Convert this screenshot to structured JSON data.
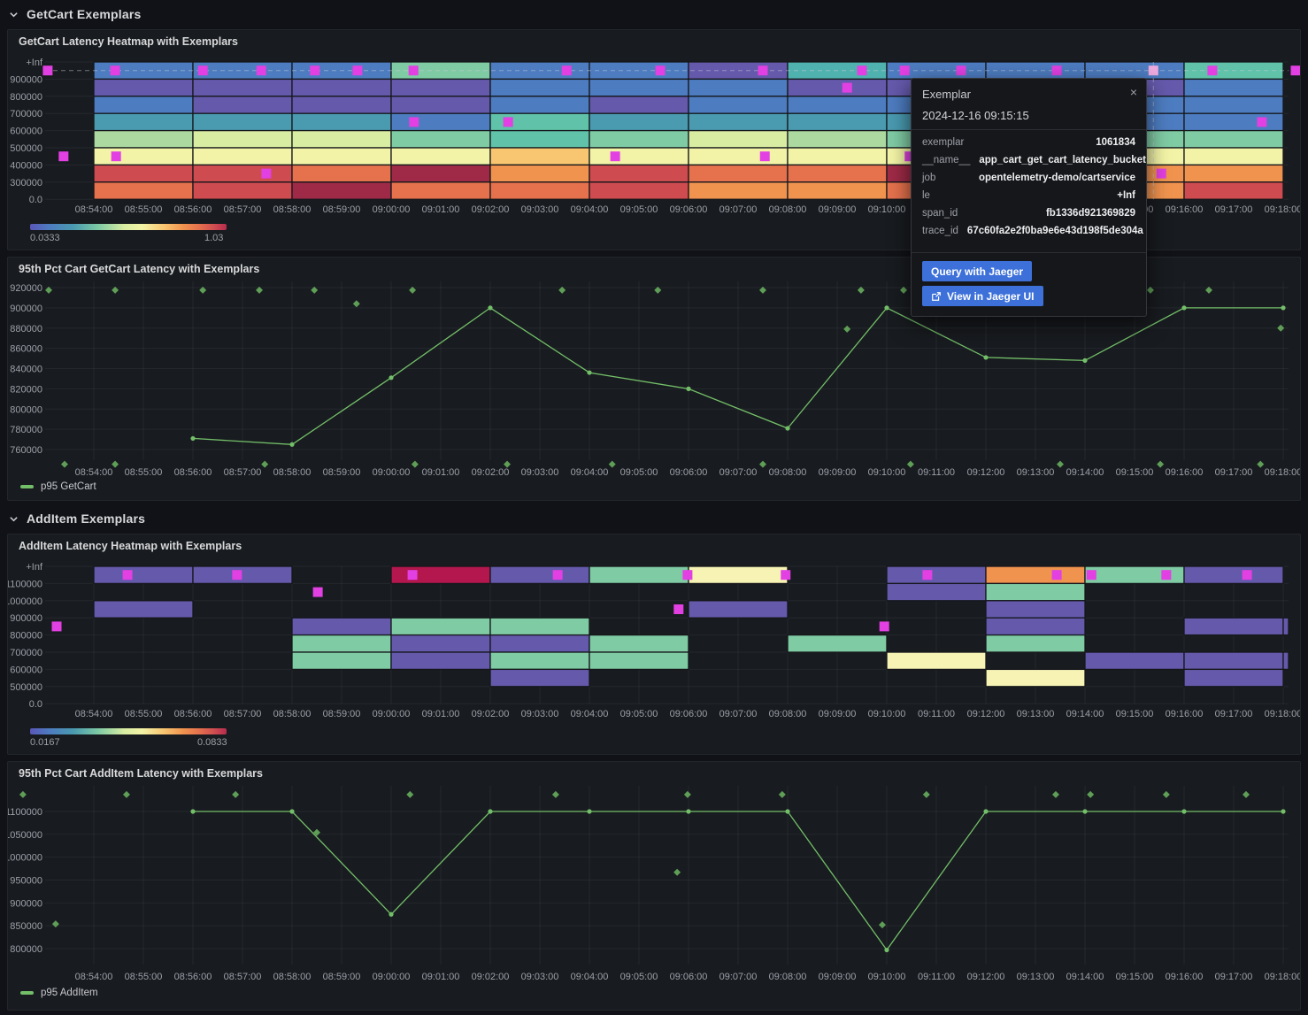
{
  "rows": [
    {
      "title": "GetCart Exemplars",
      "collapsed": false
    },
    {
      "title": "AddItem Exemplars",
      "collapsed": false
    }
  ],
  "panels": {
    "heatmap_getcart": {
      "title": "GetCart Latency Heatmap with Exemplars",
      "scale_min": "0.0333",
      "scale_max": "1.03"
    },
    "line_getcart": {
      "title": "95th Pct Cart GetCart Latency with Exemplars",
      "legend": "p95 GetCart"
    },
    "heatmap_additem": {
      "title": "AddItem Latency Heatmap with Exemplars",
      "scale_min": "0.0167",
      "scale_max": "0.0833"
    },
    "line_additem": {
      "title": "95th Pct Cart AddItem Latency with Exemplars",
      "legend": "p95 AddItem"
    }
  },
  "tooltip": {
    "title": "Exemplar",
    "timestamp": "2024-12-16 09:15:15",
    "close": "×",
    "fields": [
      {
        "key": "exemplar",
        "value": "1061834"
      },
      {
        "key": "__name__",
        "value": "app_cart_get_cart_latency_bucket"
      },
      {
        "key": "job",
        "value": "opentelemetry-demo/cartservice"
      },
      {
        "key": "le",
        "value": "+Inf"
      },
      {
        "key": "span_id",
        "value": "fb1336d921369829"
      },
      {
        "key": "trace_id",
        "value": "67c60fa2e2f0ba9e6e43d198f5de304a"
      }
    ],
    "buttons": [
      {
        "label": "Query with Jaeger"
      },
      {
        "label": "View in Jaeger UI",
        "icon": "external-link-icon"
      }
    ]
  },
  "colors": {
    "accent_blue": "#3d71d9",
    "series_green": "#73bf69",
    "diamond_green": "#5f9e57",
    "exemplar_magenta": "#e240e2",
    "exemplar_magenta_light": "#eeaade",
    "grid": "rgba(204,204,220,0.07)",
    "axis_text": "#9da0a8",
    "panel_bg": "#181b1f",
    "page_bg": "#111217"
  },
  "palette": {
    "B": "#4d7cc0",
    "P": "#6459ab",
    "TB": "#4a9ab0",
    "T": "#50b2ae",
    "TG": "#5fc2a9",
    "G": "#7fcba4",
    "LG": "#abd9a0",
    "YG": "#d9eda2",
    "PY": "#f2f3a6",
    "PY2": "#f6f3b4",
    "LO": "#f8c671",
    "O": "#f0934f",
    "OR": "#e5714d",
    "R": "#ce4b50",
    "CR": "#b62c4d",
    "CR2": "#b3174e",
    "DR": "#9e2a47"
  },
  "time_axis": [
    "08:54:00",
    "08:55:00",
    "08:56:00",
    "08:57:00",
    "08:58:00",
    "08:59:00",
    "09:00:00",
    "09:01:00",
    "09:02:00",
    "09:03:00",
    "09:04:00",
    "09:05:00",
    "09:06:00",
    "09:07:00",
    "09:08:00",
    "09:09:00",
    "09:10:00",
    "09:11:00",
    "09:12:00",
    "09:13:00",
    "09:14:00",
    "09:15:00",
    "09:16:00",
    "09:17:00",
    "09:18:00"
  ],
  "chart_data": [
    {
      "type": "heatmap",
      "title": "GetCart Latency Heatmap with Exemplars",
      "y_ticks": [
        "+Inf",
        "900000",
        "800000",
        "700000",
        "600000",
        "500000",
        "400000",
        "300000",
        "0.0"
      ],
      "column_minutes": 2,
      "columns": [
        {
          "t": "08:54",
          "cells": [
            "B",
            "P",
            "B",
            "TB",
            "LG",
            "PY",
            "R",
            "OR"
          ]
        },
        {
          "t": "08:56",
          "cells": [
            "B",
            "P",
            "P",
            "TB",
            "YG",
            "PY",
            "R",
            "R"
          ]
        },
        {
          "t": "08:58",
          "cells": [
            "B",
            "P",
            "P",
            "TB",
            "YG",
            "PY",
            "OR",
            "DR"
          ]
        },
        {
          "t": "09:00",
          "cells": [
            "G",
            "P",
            "P",
            "B",
            "G",
            "PY",
            "DR",
            "OR"
          ]
        },
        {
          "t": "09:02",
          "cells": [
            "B",
            "B",
            "B",
            "TG",
            "TG",
            "LO",
            "O",
            "OR"
          ]
        },
        {
          "t": "09:04",
          "cells": [
            "B",
            "B",
            "P",
            "TB",
            "G",
            "PY",
            "R",
            "R"
          ]
        },
        {
          "t": "09:06",
          "cells": [
            "P",
            "B",
            "B",
            "TB",
            "YG",
            "PY",
            "OR",
            "O"
          ]
        },
        {
          "t": "09:08",
          "cells": [
            "T",
            "P",
            "B",
            "TB",
            "LG",
            "PY",
            "OR",
            "O"
          ]
        },
        {
          "t": "09:10",
          "cells": [
            "B",
            "P",
            "B",
            "TB",
            "G",
            "PY",
            "DR",
            "OR"
          ]
        },
        {
          "t": "09:12",
          "cells": [
            "B",
            "P",
            "B",
            "TB",
            "G",
            "PY",
            "R",
            "OR"
          ]
        },
        {
          "t": "09:14",
          "cells": [
            "B",
            "P",
            "B",
            "B",
            "G",
            "PY",
            "O",
            "O"
          ]
        },
        {
          "t": "09:16",
          "cells": [
            "TG",
            "B",
            "B",
            "B",
            "G",
            "PY",
            "O",
            "R"
          ]
        }
      ],
      "exemplars": [
        {
          "m": -0.93,
          "row": 1
        },
        {
          "m": 0.43,
          "row": 1
        },
        {
          "m": 2.2,
          "row": 1
        },
        {
          "m": 3.38,
          "row": 1
        },
        {
          "m": 4.46,
          "row": 1
        },
        {
          "m": 5.32,
          "row": 1
        },
        {
          "m": 6.45,
          "row": 1
        },
        {
          "m": 9.54,
          "row": 1
        },
        {
          "m": 11.43,
          "row": 1
        },
        {
          "m": 13.5,
          "row": 1
        },
        {
          "m": 15.5,
          "row": 1
        },
        {
          "m": 16.36,
          "row": 1
        },
        {
          "m": 17.5,
          "row": 1
        },
        {
          "m": 19.43,
          "row": 1
        },
        {
          "m": 22.57,
          "row": 1
        },
        {
          "m": 24.25,
          "row": 1
        },
        {
          "m": 21.38,
          "row": 1,
          "light": true
        },
        {
          "m": 15.2,
          "row": 2
        },
        {
          "m": 6.46,
          "row": 4
        },
        {
          "m": 8.36,
          "row": 4
        },
        {
          "m": 23.57,
          "row": 4
        },
        {
          "m": -0.61,
          "row": 6
        },
        {
          "m": 0.45,
          "row": 6
        },
        {
          "m": 10.52,
          "row": 6
        },
        {
          "m": 13.54,
          "row": 6
        },
        {
          "m": 16.46,
          "row": 6
        },
        {
          "m": 3.48,
          "row": 7
        },
        {
          "m": 21.54,
          "row": 7
        }
      ],
      "crosshair": {
        "m": 21.38,
        "row": 1
      },
      "scale": {
        "min": "0.0333",
        "max": "1.03"
      }
    },
    {
      "type": "line",
      "title": "95th Pct Cart GetCart Latency with Exemplars",
      "series": [
        {
          "name": "p95 GetCart",
          "x_minutes": [
            2,
            4,
            6,
            8,
            10,
            12,
            14,
            16,
            18,
            20,
            22,
            24
          ],
          "values": [
            771000,
            765000,
            831000,
            900000,
            836000,
            820000,
            781000,
            900000,
            851000,
            848000,
            900000,
            900000
          ]
        }
      ],
      "ylim": [
        760000,
        920000
      ],
      "y_ticks": [
        920000,
        900000,
        880000,
        860000,
        840000,
        820000,
        800000,
        780000,
        760000
      ],
      "exemplar_points": [
        {
          "m": -0.91,
          "v": 917500
        },
        {
          "m": 0.43,
          "v": 917500
        },
        {
          "m": 2.2,
          "v": 917500
        },
        {
          "m": 3.34,
          "v": 917500
        },
        {
          "m": 4.45,
          "v": 917500
        },
        {
          "m": 6.43,
          "v": 917500
        },
        {
          "m": 9.45,
          "v": 917500
        },
        {
          "m": 11.38,
          "v": 917500
        },
        {
          "m": 13.5,
          "v": 917500
        },
        {
          "m": 15.48,
          "v": 917500
        },
        {
          "m": 16.34,
          "v": 917500
        },
        {
          "m": 21.32,
          "v": 917500
        },
        {
          "m": 22.5,
          "v": 917500
        },
        {
          "m": 5.3,
          "v": 904000
        },
        {
          "m": 15.2,
          "v": 879000
        },
        {
          "m": 23.95,
          "v": 880000
        },
        {
          "m": -0.59,
          "v": 745500
        },
        {
          "m": 0.43,
          "v": 745500
        },
        {
          "m": 3.45,
          "v": 745500
        },
        {
          "m": 6.48,
          "v": 745500
        },
        {
          "m": 8.34,
          "v": 745500
        },
        {
          "m": 10.46,
          "v": 745500
        },
        {
          "m": 13.5,
          "v": 745500
        },
        {
          "m": 16.48,
          "v": 745500
        },
        {
          "m": 19.5,
          "v": 745500
        },
        {
          "m": 21.52,
          "v": 745500
        },
        {
          "m": 23.54,
          "v": 745500
        }
      ]
    },
    {
      "type": "heatmap",
      "title": "AddItem Latency Heatmap with Exemplars",
      "y_ticks": [
        "+Inf",
        "1100000",
        "1000000",
        "900000",
        "800000",
        "700000",
        "600000",
        "500000",
        "0.0"
      ],
      "column_minutes": 2,
      "columns": [
        {
          "t": "08:54",
          "cells": [
            "P",
            null,
            "P",
            null,
            null,
            null,
            null,
            null
          ]
        },
        {
          "t": "08:56",
          "cells": [
            "P",
            null,
            null,
            null,
            null,
            null,
            null,
            null
          ]
        },
        {
          "t": "08:58",
          "cells": [
            null,
            null,
            null,
            "P",
            "G",
            "G",
            null,
            null
          ]
        },
        {
          "t": "09:00",
          "cells": [
            "CR2",
            null,
            null,
            "G",
            "P",
            "P",
            null,
            null
          ]
        },
        {
          "t": "09:02",
          "cells": [
            "P",
            null,
            null,
            "G",
            "P",
            "G",
            "P",
            null
          ]
        },
        {
          "t": "09:04",
          "cells": [
            "G",
            null,
            null,
            null,
            "G",
            "G",
            null,
            null
          ]
        },
        {
          "t": "09:06",
          "cells": [
            "PY2",
            null,
            "P",
            null,
            null,
            null,
            null,
            null
          ]
        },
        {
          "t": "09:08",
          "cells": [
            null,
            null,
            null,
            null,
            "G",
            null,
            null,
            null
          ]
        },
        {
          "t": "09:10",
          "cells": [
            "P",
            "P",
            null,
            null,
            null,
            "PY2",
            null,
            null
          ]
        },
        {
          "t": "09:12",
          "cells": [
            "O",
            "G",
            "P",
            "P",
            "G",
            null,
            "PY2",
            null
          ]
        },
        {
          "t": "09:14",
          "cells": [
            "G",
            null,
            null,
            null,
            null,
            "P",
            null,
            null
          ]
        },
        {
          "t": "09:16",
          "cells": [
            "P",
            null,
            null,
            "P",
            null,
            "P",
            "P",
            null
          ]
        }
      ],
      "partial_column": {
        "t": "09:18",
        "cells": [
          null,
          null,
          null,
          "P",
          null,
          "P",
          null,
          null
        ]
      },
      "exemplars": [
        {
          "m": 0.68,
          "row": 1
        },
        {
          "m": 2.89,
          "row": 1
        },
        {
          "m": 6.43,
          "row": 1
        },
        {
          "m": 9.36,
          "row": 1
        },
        {
          "m": 11.98,
          "row": 1
        },
        {
          "m": 13.96,
          "row": 1
        },
        {
          "m": 16.82,
          "row": 1
        },
        {
          "m": 19.43,
          "row": 1
        },
        {
          "m": 20.13,
          "row": 1
        },
        {
          "m": 21.64,
          "row": 1
        },
        {
          "m": 23.27,
          "row": 1
        },
        {
          "m": 4.52,
          "row": 2
        },
        {
          "m": 11.8,
          "row": 3
        },
        {
          "m": -0.75,
          "row": 4
        },
        {
          "m": 15.95,
          "row": 4
        }
      ],
      "scale": {
        "min": "0.0167",
        "max": "0.0833"
      }
    },
    {
      "type": "line",
      "title": "95th Pct Cart AddItem Latency with Exemplars",
      "series": [
        {
          "name": "p95 AddItem",
          "x_minutes": [
            2,
            4,
            6,
            8,
            10,
            12,
            14,
            16,
            18,
            20,
            22,
            24
          ],
          "values": [
            1100000,
            1100000,
            875000,
            1100000,
            1100000,
            1100000,
            1100000,
            797000,
            1100000,
            1100000,
            1100000,
            1100000
          ]
        }
      ],
      "ylim": [
        800000,
        1100000
      ],
      "y_ticks": [
        1100000,
        1050000,
        1000000,
        950000,
        900000,
        850000,
        800000
      ],
      "exemplar_points": [
        {
          "m": -1.43,
          "v": 1137000
        },
        {
          "m": 0.66,
          "v": 1137000
        },
        {
          "m": 2.86,
          "v": 1137000
        },
        {
          "m": 6.38,
          "v": 1137000
        },
        {
          "m": 9.32,
          "v": 1137000
        },
        {
          "m": 11.98,
          "v": 1137000
        },
        {
          "m": 13.89,
          "v": 1137000
        },
        {
          "m": 16.8,
          "v": 1137000
        },
        {
          "m": 19.41,
          "v": 1137000
        },
        {
          "m": 20.11,
          "v": 1137000
        },
        {
          "m": 21.64,
          "v": 1137000
        },
        {
          "m": 23.25,
          "v": 1137000
        },
        {
          "m": -0.77,
          "v": 854000
        },
        {
          "m": 4.5,
          "v": 1054000
        },
        {
          "m": 11.77,
          "v": 967000
        },
        {
          "m": 15.91,
          "v": 852000
        }
      ]
    }
  ]
}
